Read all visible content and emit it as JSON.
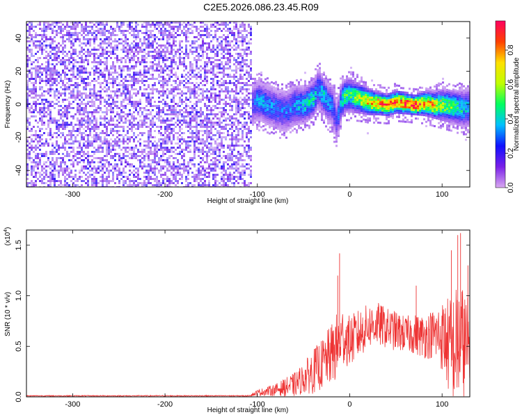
{
  "title": "C2E5.2026.086.23.45.R09",
  "chart_data": [
    {
      "type": "heatmap",
      "name": "spectrogram",
      "xlabel": "Height of straight line (km)",
      "ylabel": "Frequency (Hz)",
      "xlim": [
        -350,
        130
      ],
      "ylim": [
        -50,
        50
      ],
      "xticks": [
        -300,
        -200,
        -100,
        0,
        100
      ],
      "xtick_labels": [
        "-300",
        "-200",
        "-100",
        "0",
        "100"
      ],
      "yticks": [
        -40,
        -20,
        0,
        20,
        40
      ],
      "ytick_labels": [
        "-40",
        "-20",
        "0",
        "20",
        "40"
      ],
      "colorbar": {
        "label": "Normalized spectral amplitude",
        "range": [
          0,
          0.97
        ],
        "ticks": [
          0.0,
          0.2,
          0.4,
          0.6,
          0.8
        ],
        "tick_labels": [
          "0.0",
          "0.2",
          "0.4",
          "0.6",
          "0.8"
        ],
        "colors": [
          "#d8a8f0",
          "#7a20e8",
          "#1010ff",
          "#00c0ff",
          "#00ff60",
          "#c0ff00",
          "#ffe000",
          "#ff4000",
          "#ff0060"
        ]
      },
      "noise_region": {
        "x_range": [
          -350,
          -108
        ],
        "level": 0.15
      },
      "ridge": {
        "x": [
          -108,
          -100,
          -90,
          -80,
          -70,
          -60,
          -50,
          -40,
          -35,
          -30,
          -25,
          -20,
          -15,
          -10,
          -5,
          0,
          10,
          20,
          30,
          40,
          50,
          60,
          70,
          80,
          90,
          100,
          110,
          120,
          130
        ],
        "frequency": [
          0,
          3,
          0,
          -2,
          -4,
          0,
          0,
          4,
          10,
          6,
          2,
          0,
          -10,
          3,
          6,
          6,
          4,
          2,
          1,
          0,
          2,
          1,
          0,
          1,
          0,
          0,
          -1,
          -2,
          -1
        ],
        "amplitude": [
          0.2,
          0.35,
          0.35,
          0.3,
          0.3,
          0.35,
          0.4,
          0.45,
          0.3,
          0.45,
          0.35,
          0.3,
          0.2,
          0.45,
          0.5,
          0.5,
          0.65,
          0.75,
          0.85,
          0.9,
          0.85,
          0.9,
          0.95,
          0.8,
          0.75,
          0.6,
          0.55,
          0.45,
          0.35
        ]
      }
    },
    {
      "type": "line",
      "name": "snr",
      "xlabel": "Height of straight line (km)",
      "ylabel": "SNR (10 * v/v)",
      "y_multiplier_label": "(x10",
      "y_multiplier_exp": "4",
      "y_multiplier_close": ")",
      "xlim": [
        -350,
        130
      ],
      "ylim": [
        0,
        1.65
      ],
      "xticks": [
        -300,
        -200,
        -100,
        0,
        100
      ],
      "xtick_labels": [
        "-300",
        "-200",
        "-100",
        "0",
        "100"
      ],
      "yticks": [
        0.0,
        0.5,
        1.0,
        1.5
      ],
      "ytick_labels": [
        "0.0",
        "0.5",
        "1.0",
        "1.5"
      ],
      "color": "#ee3333",
      "envelope": {
        "x": [
          -350,
          -110,
          -100,
          -80,
          -60,
          -50,
          -40,
          -30,
          -20,
          -15,
          -12,
          -10,
          -8,
          0,
          10,
          20,
          30,
          40,
          50,
          60,
          70,
          80,
          90,
          100,
          105,
          110,
          115,
          120,
          125,
          130
        ],
        "mean": [
          0.01,
          0.01,
          0.04,
          0.07,
          0.12,
          0.18,
          0.25,
          0.32,
          0.42,
          0.48,
          0.52,
          0.55,
          0.6,
          0.55,
          0.62,
          0.7,
          0.72,
          0.68,
          0.65,
          0.62,
          0.62,
          0.6,
          0.62,
          0.6,
          0.55,
          0.45,
          0.5,
          0.55,
          0.5,
          0.45
        ],
        "spread": [
          0.005,
          0.005,
          0.03,
          0.06,
          0.12,
          0.15,
          0.22,
          0.25,
          0.3,
          0.35,
          0.3,
          0.25,
          0.3,
          0.25,
          0.25,
          0.22,
          0.22,
          0.2,
          0.2,
          0.18,
          0.2,
          0.22,
          0.25,
          0.35,
          0.45,
          0.55,
          0.6,
          0.6,
          0.55,
          0.5
        ]
      },
      "spikes": [
        {
          "x": -11,
          "y": 1.42
        },
        {
          "x": -13,
          "y": 1.2
        },
        {
          "x": 72,
          "y": 1.1
        },
        {
          "x": 110,
          "y": 1.45
        },
        {
          "x": 117,
          "y": 1.6
        },
        {
          "x": 120,
          "y": 1.62
        },
        {
          "x": 128,
          "y": 1.3
        }
      ]
    }
  ]
}
